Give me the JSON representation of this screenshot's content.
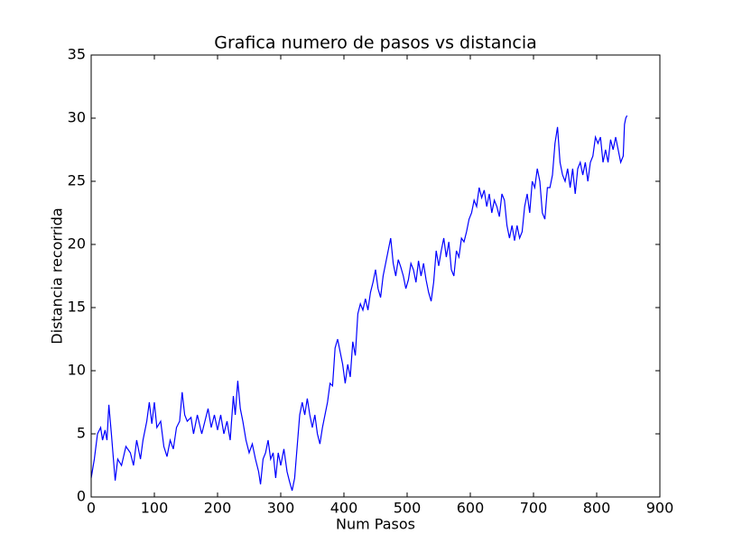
{
  "chart_data": {
    "type": "line",
    "title": "Grafica numero de pasos vs distancia",
    "x_label": "Num Pasos",
    "y_label": "Distancia recorrida",
    "xlim": [
      0,
      900
    ],
    "ylim": [
      0,
      35
    ],
    "xticks": [
      0,
      100,
      200,
      300,
      400,
      500,
      600,
      700,
      800,
      900
    ],
    "yticks": [
      0,
      5,
      10,
      15,
      20,
      25,
      30,
      35
    ],
    "series": [
      {
        "color": "#0000ff",
        "x": [
          0,
          5,
          10,
          15,
          18,
          22,
          25,
          28,
          32,
          36,
          38,
          42,
          48,
          55,
          62,
          67,
          72,
          78,
          82,
          88,
          92,
          96,
          100,
          104,
          110,
          115,
          120,
          125,
          130,
          135,
          140,
          144,
          148,
          152,
          158,
          162,
          168,
          175,
          180,
          185,
          190,
          195,
          200,
          205,
          210,
          215,
          220,
          225,
          228,
          232,
          236,
          240,
          245,
          250,
          255,
          260,
          265,
          268,
          272,
          276,
          280,
          284,
          288,
          292,
          296,
          300,
          305,
          310,
          314,
          318,
          322,
          326,
          330,
          334,
          338,
          342,
          346,
          350,
          354,
          358,
          362,
          366,
          370,
          374,
          378,
          382,
          386,
          390,
          394,
          398,
          402,
          406,
          410,
          414,
          418,
          422,
          426,
          430,
          434,
          438,
          442,
          446,
          450,
          454,
          458,
          462,
          466,
          470,
          474,
          478,
          482,
          486,
          490,
          494,
          498,
          502,
          506,
          510,
          514,
          518,
          522,
          526,
          530,
          534,
          538,
          542,
          546,
          550,
          554,
          558,
          562,
          566,
          570,
          574,
          578,
          582,
          586,
          590,
          594,
          598,
          602,
          606,
          610,
          614,
          618,
          622,
          626,
          630,
          634,
          638,
          642,
          646,
          650,
          654,
          658,
          662,
          666,
          670,
          674,
          678,
          682,
          686,
          690,
          694,
          698,
          702,
          706,
          710,
          714,
          718,
          722,
          726,
          730,
          734,
          738,
          742,
          746,
          750,
          754,
          758,
          762,
          766,
          770,
          774,
          778,
          782,
          786,
          790,
          794,
          798,
          802,
          806,
          810,
          814,
          818,
          822,
          826,
          830,
          834,
          838,
          842,
          844,
          846,
          848
        ],
        "values": [
          1.5,
          3,
          5,
          5.5,
          4.5,
          5.3,
          4.5,
          7.3,
          5,
          2.5,
          1.3,
          3,
          2.5,
          4,
          3.5,
          2.5,
          4.5,
          3,
          4.5,
          6,
          7.5,
          5.8,
          7.5,
          5.5,
          6,
          4,
          3.2,
          4.5,
          3.8,
          5.5,
          6,
          8.3,
          6.5,
          6,
          6.3,
          5,
          6.5,
          5,
          6,
          7,
          5.5,
          6.5,
          5.3,
          6.5,
          5,
          6,
          4.5,
          8,
          6.5,
          9.2,
          7,
          6,
          4.5,
          3.5,
          4.2,
          3,
          2,
          1,
          3,
          3.5,
          4.5,
          3,
          3.5,
          1.5,
          3.5,
          2.5,
          3.8,
          2,
          1.2,
          0.5,
          1.5,
          4,
          6.5,
          7.5,
          6.5,
          7.8,
          6.5,
          5.5,
          6.5,
          5,
          4.2,
          5.5,
          6.5,
          7.5,
          9,
          8.8,
          11.8,
          12.5,
          11.5,
          10.5,
          9,
          10.5,
          9.5,
          12.3,
          11.2,
          14.5,
          15.3,
          14.8,
          15.7,
          14.8,
          16.2,
          17,
          18,
          16.5,
          15.8,
          17.5,
          18.5,
          19.5,
          20.5,
          18.5,
          17.5,
          18.8,
          18.2,
          17.5,
          16.5,
          17.2,
          18.5,
          18,
          17,
          18.7,
          17.5,
          18.5,
          17.2,
          16.2,
          15.5,
          17,
          19.5,
          18.3,
          19.5,
          20.5,
          19,
          20.2,
          18,
          17.5,
          19.5,
          19,
          20.5,
          20.2,
          21,
          22,
          22.5,
          23.5,
          23,
          24.5,
          23.7,
          24.3,
          23,
          24,
          22.5,
          23.5,
          23,
          22.2,
          24,
          23.5,
          21.5,
          20.5,
          21.5,
          20.3,
          21.5,
          20.5,
          21,
          23,
          24,
          22.5,
          25,
          24.5,
          26,
          25,
          22.5,
          22,
          24.5,
          24.5,
          25.5,
          28,
          29.3,
          26.5,
          25.5,
          25,
          26,
          24.5,
          26,
          24,
          26,
          26.5,
          25.5,
          26.5,
          25,
          26.5,
          27,
          28.5,
          28,
          28.5,
          26.5,
          27.5,
          26.5,
          28.3,
          27.5,
          28.5,
          27.5,
          26.5,
          27,
          29.5,
          30,
          30.2
        ]
      }
    ]
  }
}
